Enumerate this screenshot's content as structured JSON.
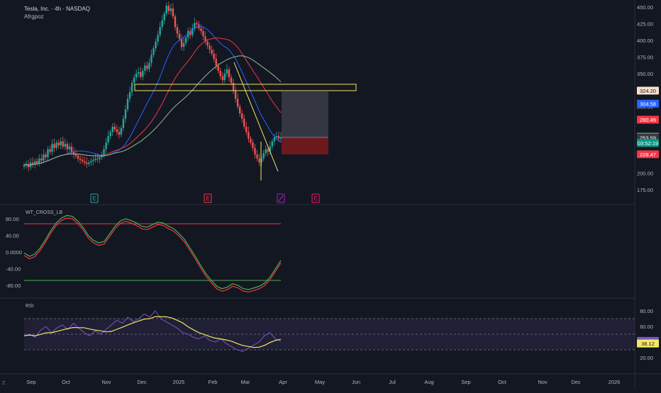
{
  "header": {
    "symbol": "Tesla, Inc. · 4h · NASDAQ",
    "author": "Afrgpoz"
  },
  "colors": {
    "background": "#131722",
    "grid": "#1e222d",
    "candle_up": "#26a69a",
    "candle_down": "#ef5350",
    "ma_blue": "#2962ff",
    "ma_red": "#f23645",
    "ma_green": "#8fbc8f",
    "trend_yellow": "#f5e663",
    "rsi_purple": "#7e57c2",
    "rsi_yellow": "#f5e663",
    "wt_green": "#4caf50",
    "wt_red": "#f23645"
  },
  "price_axis": {
    "ticks": [
      "450.00",
      "425.00",
      "400.00",
      "375.00",
      "350.00",
      "300.00",
      "200.00",
      "175.00"
    ],
    "labels": [
      {
        "text": "324.20",
        "value": 324.2,
        "bg": "#f7dfc8",
        "fg": "#131722"
      },
      {
        "text": "304.58",
        "value": 304.58,
        "bg": "#2962ff",
        "fg": "#ffffff"
      },
      {
        "text": "280.49",
        "value": 280.49,
        "bg": "#f23645",
        "fg": "#ffffff"
      },
      {
        "text": "254.88",
        "value": 254.88,
        "bg": "#4caf50",
        "fg": "#ffffff"
      },
      {
        "text": "253.59",
        "value": 253.59,
        "bg": "#363a45",
        "fg": "#ffffff"
      },
      {
        "text": "03:52:19",
        "value": 245.5,
        "bg": "#089981",
        "fg": "#ffffff"
      },
      {
        "text": "228.47",
        "value": 228.47,
        "bg": "#f23645",
        "fg": "#ffffff"
      }
    ]
  },
  "wt_axis": {
    "ticks": [
      "80.00",
      "40.00",
      "0.0000",
      "-40.00",
      "-80.00"
    ]
  },
  "rsi_axis": {
    "ticks": [
      "80.00",
      "60.00",
      "20.00"
    ],
    "labels": [
      {
        "text": "41.50",
        "value": 41.5,
        "bg": "#7e57c2",
        "fg": "#ffffff"
      },
      {
        "text": "38.12",
        "value": 38.12,
        "bg": "#f5e663",
        "fg": "#131722"
      }
    ]
  },
  "time_axis": [
    "Sep",
    "Oct",
    "Nov",
    "Dec",
    "2025",
    "Feb",
    "Mar",
    "Apr",
    "May",
    "Jun",
    "Jul",
    "Aug",
    "Sep",
    "Oct",
    "Nov",
    "Dec",
    "2026"
  ],
  "events": [
    {
      "label": "E",
      "color": "#26a69a"
    },
    {
      "label": "E",
      "color": "#f23645"
    },
    {
      "label": "",
      "color": "#9c27b0",
      "icon": "split-icon"
    },
    {
      "label": "E",
      "color": "#e91e63"
    }
  ],
  "indicators": {
    "wt_title": "WT_CROSS_LB",
    "rsi_title": "RSI"
  },
  "footer": {
    "tz_icon": "Z"
  },
  "chart_data": {
    "type": "candlestick",
    "title": "Tesla, Inc. · 4h · NASDAQ",
    "ylim": [
      165,
      460
    ],
    "closes": [
      212,
      214,
      209,
      216,
      213,
      218,
      215,
      222,
      219,
      228,
      224,
      236,
      232,
      244,
      238,
      246,
      242,
      248,
      240,
      244,
      236,
      240,
      232,
      228,
      226,
      222,
      220,
      218,
      216,
      214,
      216,
      218,
      220,
      222,
      221,
      224,
      228,
      236,
      246,
      256,
      262,
      270,
      266,
      262,
      258,
      268,
      282,
      296,
      312,
      322,
      336,
      344,
      350,
      352,
      345,
      354,
      362,
      357,
      366,
      378,
      388,
      398,
      408,
      420,
      430,
      440,
      452,
      444,
      448,
      436,
      420,
      410,
      402,
      390,
      396,
      404,
      414,
      408,
      418,
      426,
      424,
      418,
      414,
      406,
      398,
      392,
      386,
      380,
      372,
      362,
      354,
      346,
      340,
      350,
      356,
      344,
      336,
      324,
      312,
      300,
      290,
      282,
      270,
      262,
      252,
      246,
      238,
      228,
      222,
      216,
      222,
      230,
      236,
      232,
      240,
      248,
      254,
      256,
      252,
      254
    ]
  }
}
